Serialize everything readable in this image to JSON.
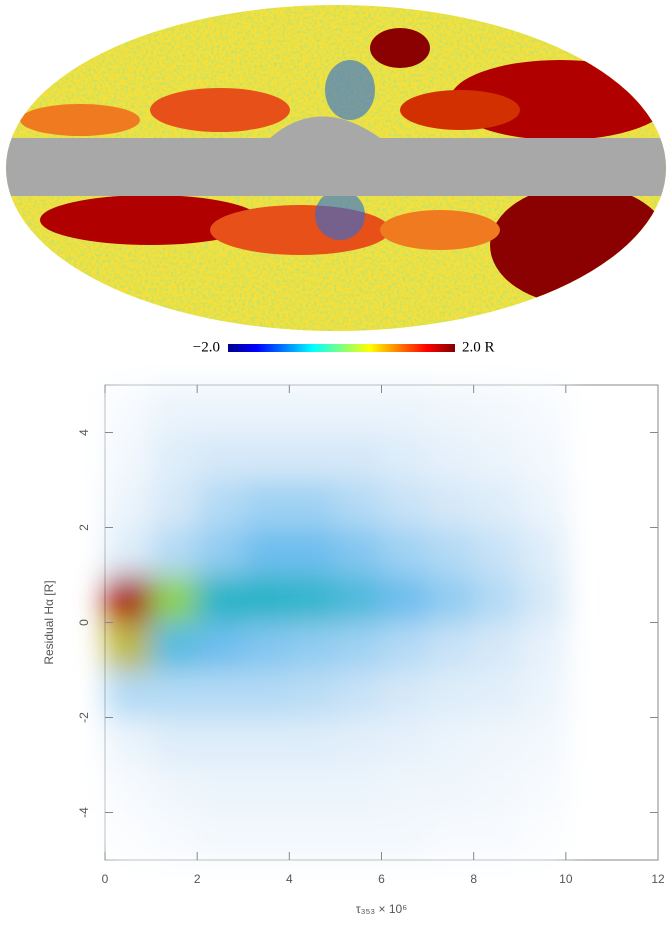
{
  "chart_data": [
    {
      "type": "map",
      "clim": [
        -2,
        2
      ],
      "cticks": [
        {
          "value": -2,
          "label": "−2.0"
        },
        {
          "value": 2,
          "label": "2.0 R"
        }
      ]
    },
    {
      "type": "hist2d",
      "xlabel": "τ₃₅₃ × 10⁶",
      "ylabel": "Residual Hα [R]",
      "xlim": [
        0,
        12
      ],
      "ylim": [
        -5,
        5
      ],
      "xticks": [
        0,
        2,
        4,
        6,
        8,
        10,
        12
      ],
      "yticks": [
        -4,
        -2,
        0,
        2,
        4
      ],
      "xbins": [
        0,
        1,
        2,
        3,
        4,
        5,
        6,
        7,
        8,
        9,
        10
      ],
      "ybins": [
        -5,
        -4,
        -3,
        -2,
        -1,
        0,
        1,
        2,
        3,
        4,
        5
      ],
      "counts": [
        [
          0.01,
          0.02,
          0.03,
          0.03,
          0.03,
          0.03,
          0.03,
          0.02,
          0.02,
          0.01
        ],
        [
          0.02,
          0.04,
          0.05,
          0.05,
          0.05,
          0.05,
          0.04,
          0.04,
          0.03,
          0.02
        ],
        [
          0.05,
          0.08,
          0.08,
          0.08,
          0.08,
          0.07,
          0.06,
          0.05,
          0.04,
          0.03
        ],
        [
          0.15,
          0.15,
          0.15,
          0.15,
          0.14,
          0.12,
          0.1,
          0.08,
          0.07,
          0.05
        ],
        [
          0.6,
          0.3,
          0.25,
          0.22,
          0.2,
          0.18,
          0.15,
          0.12,
          0.1,
          0.06
        ],
        [
          0.75,
          0.55,
          0.4,
          0.4,
          0.38,
          0.32,
          0.25,
          0.2,
          0.15,
          0.1
        ],
        [
          0.08,
          0.15,
          0.2,
          0.25,
          0.25,
          0.22,
          0.18,
          0.15,
          0.12,
          0.08
        ],
        [
          0.05,
          0.1,
          0.15,
          0.18,
          0.18,
          0.15,
          0.12,
          0.1,
          0.08,
          0.05
        ],
        [
          0.03,
          0.08,
          0.1,
          0.1,
          0.1,
          0.1,
          0.08,
          0.06,
          0.05,
          0.03
        ],
        [
          0.02,
          0.05,
          0.05,
          0.05,
          0.05,
          0.05,
          0.05,
          0.04,
          0.03,
          0.02
        ]
      ]
    }
  ]
}
